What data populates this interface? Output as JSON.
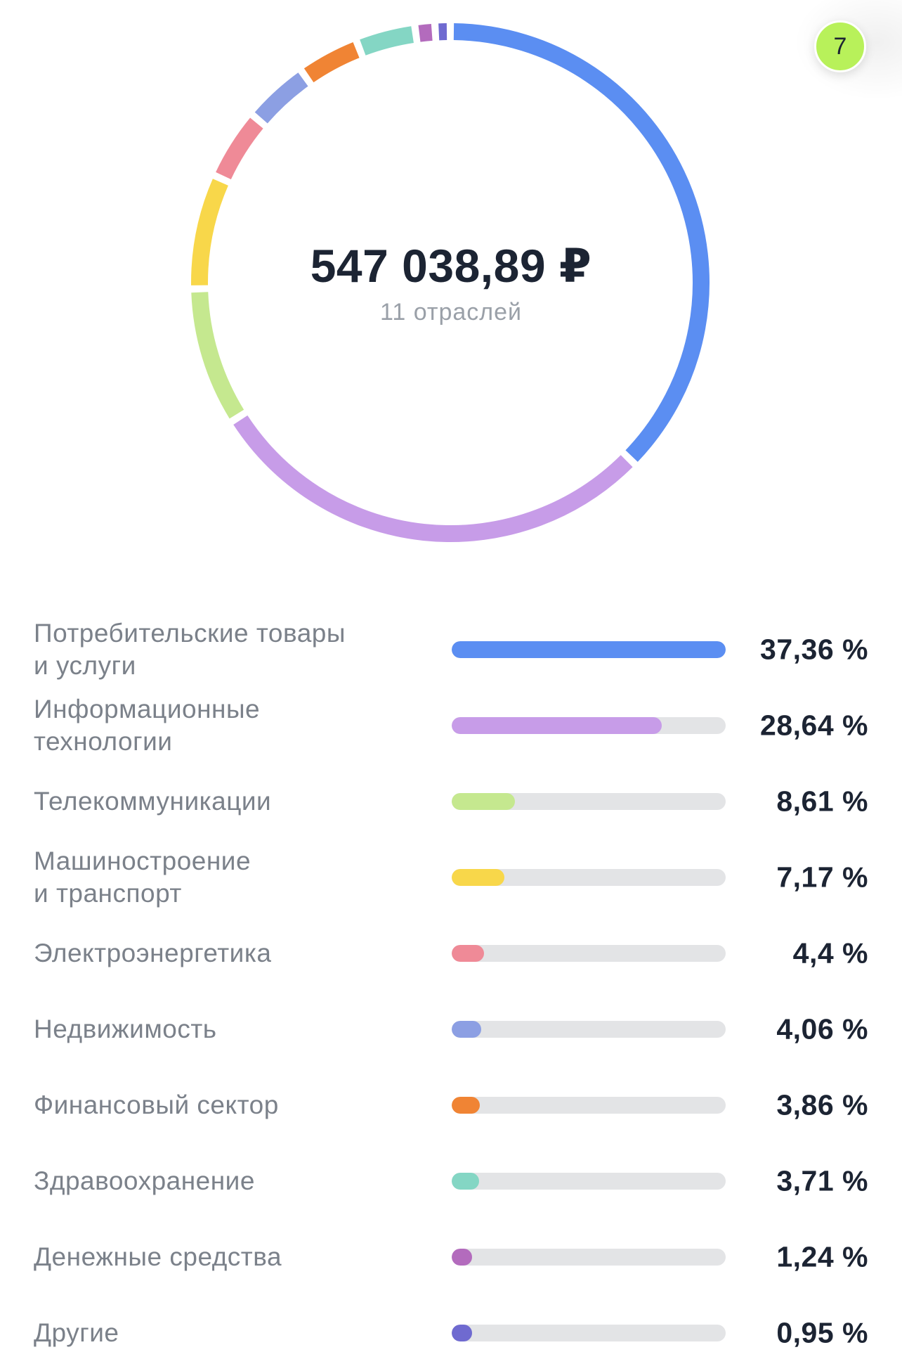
{
  "badge": {
    "count": "7"
  },
  "summary": {
    "total": "547 038,89 ₽",
    "subtitle": "11 отраслей"
  },
  "chart_data": {
    "type": "pie",
    "style": "donut",
    "title": "",
    "categories": [
      "Потребительские товары\nи услуги",
      "Информационные\nтехнологии",
      "Телекоммуникации",
      "Машиностроение\nи транспорт",
      "Электроэнергетика",
      "Недвижимость",
      "Финансовый сектор",
      "Здравоохранение",
      "Денежные средства",
      "Другие"
    ],
    "values": [
      37.36,
      28.64,
      8.61,
      7.17,
      4.4,
      4.06,
      3.86,
      3.71,
      1.24,
      0.95
    ],
    "value_labels": [
      "37,36 %",
      "28,64 %",
      "8,61 %",
      "7,17 %",
      "4,4 %",
      "4,06 %",
      "3,86 %",
      "3,71 %",
      "1,24 %",
      "0,95 %"
    ],
    "colors": [
      "#5b8ef2",
      "#c79ce8",
      "#c5e88f",
      "#f8d74a",
      "#ef8a97",
      "#8c9fe3",
      "#f08434",
      "#84d6c4",
      "#b36bbd",
      "#6f6ad0"
    ]
  }
}
